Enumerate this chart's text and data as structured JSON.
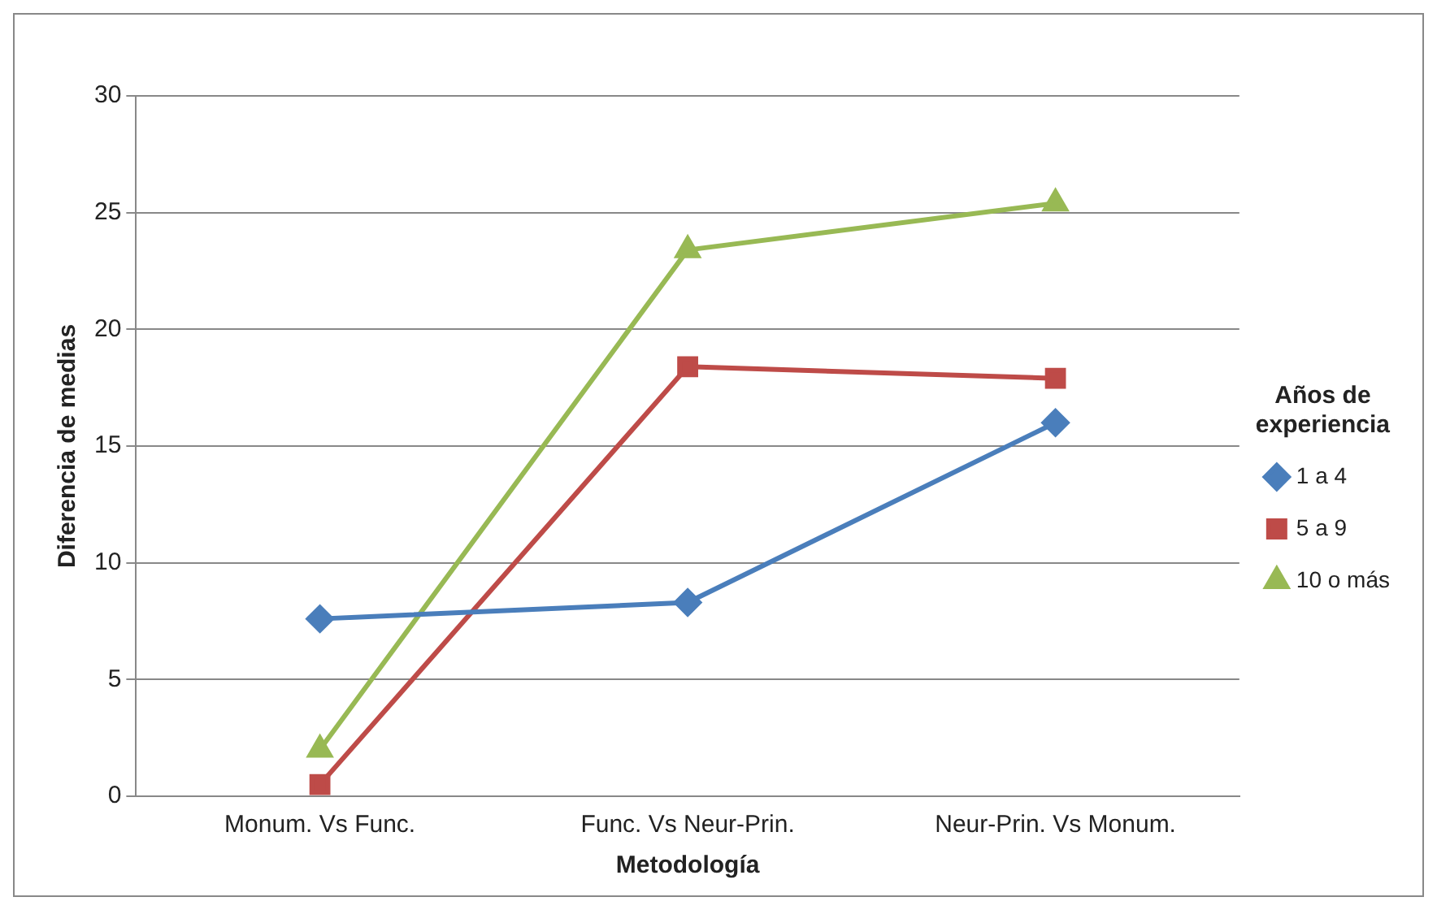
{
  "chart_data": {
    "type": "line",
    "xlabel": "Metodología",
    "ylabel": "Diferencia de medias",
    "legend_title": "Años de experiencia",
    "categories": [
      "Monum. Vs Func.",
      "Func. Vs Neur-Prin.",
      "Neur-Prin. Vs Monum."
    ],
    "series": [
      {
        "name": "1 a 4",
        "color": "#4a7ebb",
        "marker": "diamond",
        "values": [
          7.6,
          8.3,
          16
        ]
      },
      {
        "name": "5 a 9",
        "color": "#be4b48",
        "marker": "square",
        "values": [
          0.5,
          18.4,
          17.9
        ]
      },
      {
        "name": "10 o más",
        "color": "#98b954",
        "marker": "triangle",
        "values": [
          2,
          23.4,
          25.4
        ]
      }
    ],
    "ylim": [
      0,
      30
    ],
    "yticks": [
      0,
      5,
      10,
      15,
      20,
      25,
      30
    ],
    "grid": "y",
    "legend": "right",
    "line_style": "solid"
  }
}
